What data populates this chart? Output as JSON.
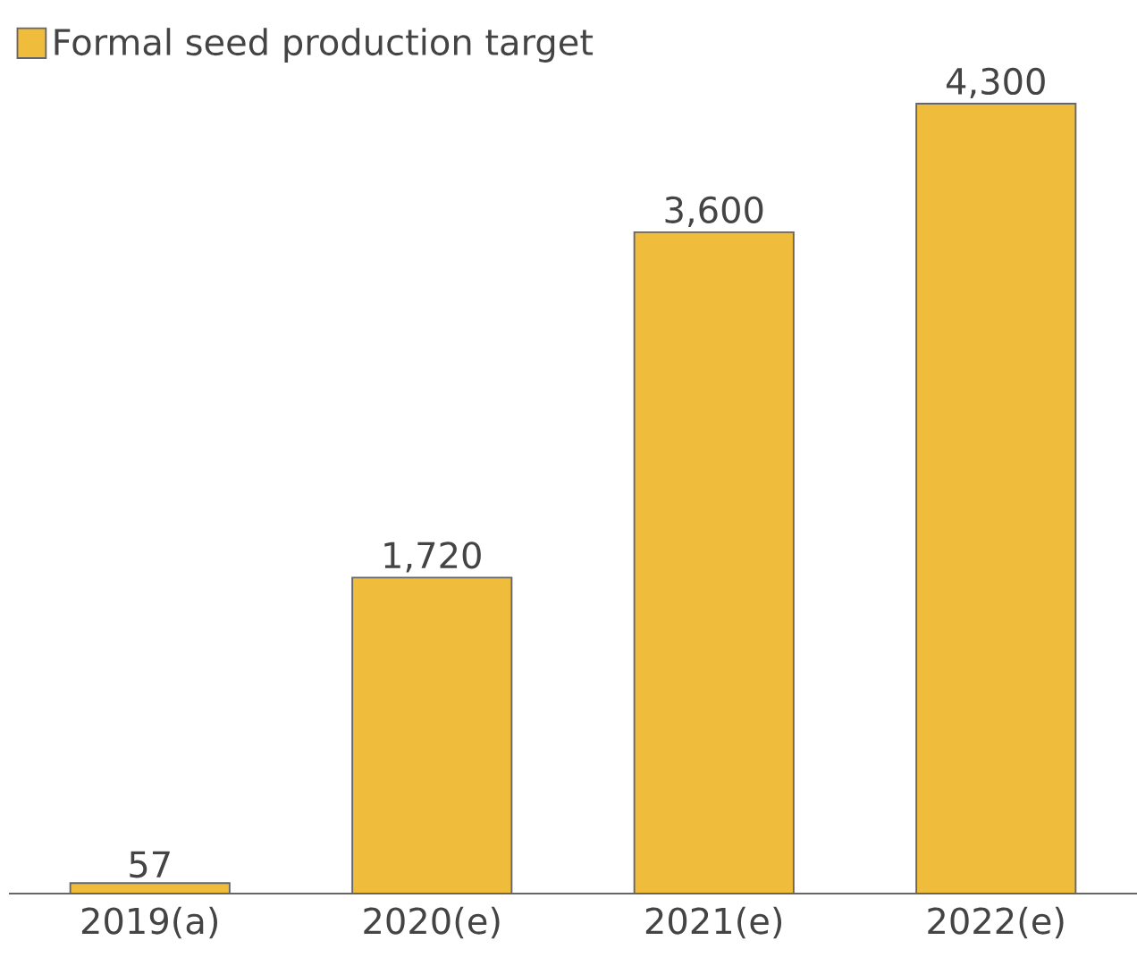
{
  "chart_data": {
    "type": "bar",
    "categories": [
      "2019(a)",
      "2020(e)",
      "2021(e)",
      "2022(e)"
    ],
    "series": [
      {
        "name": "Formal seed production target",
        "color": "#f0bc3b",
        "values": [
          57,
          1720,
          3600,
          4300
        ],
        "value_labels": [
          "57",
          "1,720",
          "3,600",
          "4,300"
        ]
      }
    ],
    "legend": "top left"
  }
}
